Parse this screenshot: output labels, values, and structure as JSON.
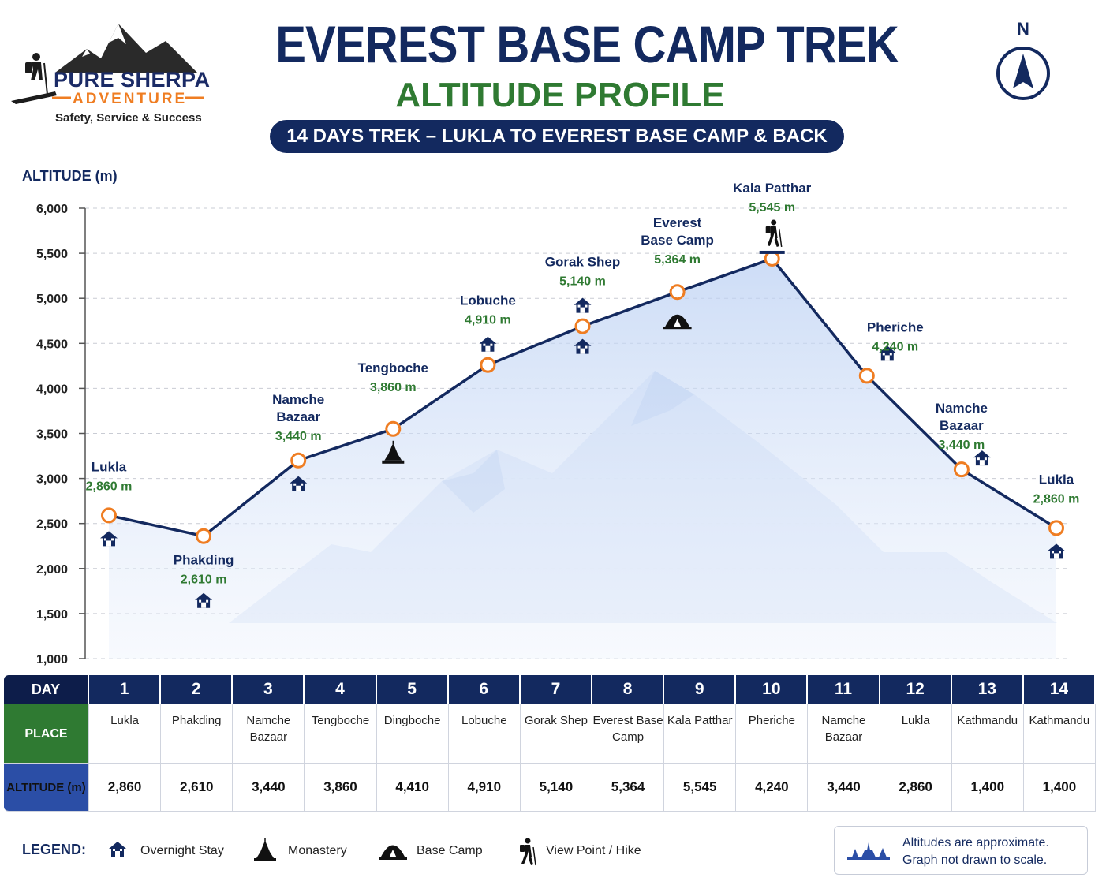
{
  "logo": {
    "name": "PURE SHERPA",
    "sub": "ADVENTURE",
    "tagline": "Safety, Service & Success",
    "icon": "mountain-hiker-logo"
  },
  "header": {
    "title": "EVEREST BASE CAMP TREK",
    "subtitle": "ALTITUDE PROFILE",
    "banner": "14 DAYS TREK – LUKLA TO EVEREST BASE CAMP & BACK"
  },
  "compass": {
    "label": "N",
    "icon": "north-arrow-icon"
  },
  "colors": {
    "navy": "#13295f",
    "green": "#2f7a32",
    "orange": "#ef7d22",
    "fill": "#cfdcf5"
  },
  "chart_data": {
    "type": "line",
    "ylabel": "ALTITUDE (m)",
    "ylim": [
      1000,
      6000
    ],
    "yticks": [
      1000,
      1500,
      2000,
      2500,
      3000,
      3500,
      4000,
      4500,
      5000,
      5500,
      6000
    ],
    "ytick_labels": [
      "1,000",
      "1,500",
      "2,000",
      "2,500",
      "3,000",
      "3,500",
      "4,000",
      "4,500",
      "5,000",
      "5,500",
      "6,000"
    ],
    "grid": true,
    "points": [
      {
        "name": "Lukla",
        "alt_label": "2,860 m",
        "y": 2590,
        "marker": "overnight",
        "label_pos": "above"
      },
      {
        "name": "Phakding",
        "alt_label": "2,610 m",
        "y": 2360,
        "marker": "overnight",
        "label_pos": "below"
      },
      {
        "name": "Namche\nBazaar",
        "alt_label": "3,440 m",
        "y": 3200,
        "marker": "overnight",
        "label_pos": "above"
      },
      {
        "name": "Tengboche",
        "alt_label": "3,860 m",
        "y": 3550,
        "marker": "monastery",
        "label_pos": "above"
      },
      {
        "name": "Lobuche",
        "alt_label": "4,910 m",
        "y": 4260,
        "marker": "overnight",
        "label_pos": "above"
      },
      {
        "name": "Gorak Shep",
        "alt_label": "5,140 m",
        "y": 4690,
        "marker": "overnight",
        "label_pos": "above"
      },
      {
        "name": "Everest\nBase Camp",
        "alt_label": "5,364 m",
        "y": 5070,
        "marker": "basecamp",
        "label_pos": "above"
      },
      {
        "name": "Kala Patthar",
        "alt_label": "5,545 m",
        "y": 5440,
        "marker": "viewpoint",
        "label_pos": "above"
      },
      {
        "name": "Pheriche",
        "alt_label": "4,240 m",
        "y": 4140,
        "marker": "overnight",
        "label_pos": "right"
      },
      {
        "name": "Namche\nBazaar",
        "alt_label": "3,440 m",
        "y": 3100,
        "marker": "overnight",
        "label_pos": "above"
      },
      {
        "name": "Lukla",
        "alt_label": "2,860 m",
        "y": 2450,
        "marker": "overnight",
        "label_pos": "above"
      }
    ]
  },
  "table": {
    "day_header": "DAY",
    "place_header": "PLACE",
    "alt_header": "ALTITUDE (m)",
    "days": [
      {
        "day": "1",
        "place": "Lukla",
        "alt": "2,860"
      },
      {
        "day": "2",
        "place": "Phakding",
        "alt": "2,610"
      },
      {
        "day": "3",
        "place": "Namche Bazaar",
        "alt": "3,440"
      },
      {
        "day": "4",
        "place": "Tengboche",
        "alt": "3,860"
      },
      {
        "day": "5",
        "place": "Dingboche",
        "alt": "4,410"
      },
      {
        "day": "6",
        "place": "Lobuche",
        "alt": "4,910"
      },
      {
        "day": "7",
        "place": "Gorak Shep",
        "alt": "5,140"
      },
      {
        "day": "8",
        "place": "Everest Base Camp",
        "alt": "5,364"
      },
      {
        "day": "9",
        "place": "Kala Patthar",
        "alt": "5,545"
      },
      {
        "day": "10",
        "place": "Pheriche",
        "alt": "4,240"
      },
      {
        "day": "11",
        "place": "Namche Bazaar",
        "alt": "3,440"
      },
      {
        "day": "12",
        "place": "Lukla",
        "alt": "2,860"
      },
      {
        "day": "13",
        "place": "Kathmandu",
        "alt": "1,400"
      },
      {
        "day": "14",
        "place": "Kathmandu",
        "alt": "1,400"
      }
    ]
  },
  "legend": {
    "title": "LEGEND:",
    "items": [
      {
        "label": "Overnight Stay",
        "icon": "house-icon"
      },
      {
        "label": "Monastery",
        "icon": "monastery-icon"
      },
      {
        "label": "Base Camp",
        "icon": "tent-icon"
      },
      {
        "label": "View Point / Hike",
        "icon": "hiker-icon"
      }
    ]
  },
  "note": {
    "line1": "Altitudes are approximate.",
    "line2": "Graph not drawn to scale.",
    "icon": "monastery-skyline-icon"
  }
}
